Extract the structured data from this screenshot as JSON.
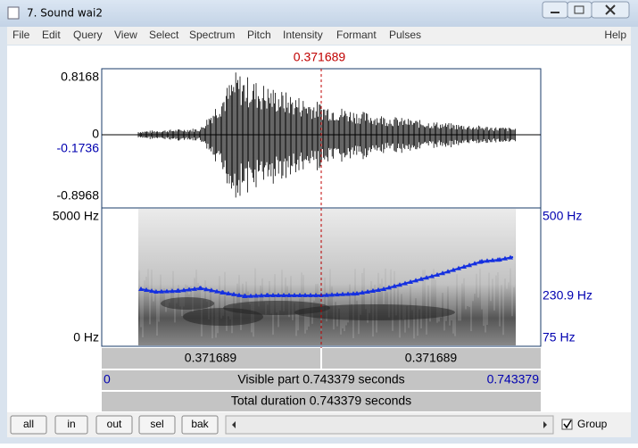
{
  "window": {
    "title": "7. Sound wai2"
  },
  "menu": {
    "items": [
      "File",
      "Edit",
      "Query",
      "View",
      "Select",
      "Spectrum",
      "Pitch",
      "Intensity",
      "Formant",
      "Pulses"
    ],
    "help": "Help"
  },
  "cursor_time": "0.371689",
  "waveform": {
    "max": "0.8168",
    "zero": "0",
    "cursor_value": "-0.1736",
    "min": "-0.8968"
  },
  "spectrogram": {
    "fmax": "5000 Hz",
    "fmin": "0 Hz",
    "pitch_max": "500 Hz",
    "pitch_cursor": "230.9 Hz",
    "pitch_min": "75 Hz"
  },
  "selection_bar": {
    "left": "0.371689",
    "right": "0.371689"
  },
  "visible_bar": {
    "start": "0",
    "label": "Visible part 0.743379 seconds",
    "end": "0.743379"
  },
  "total_bar": {
    "label": "Total duration 0.743379 seconds"
  },
  "buttons": [
    "all",
    "in",
    "out",
    "sel",
    "bak"
  ],
  "group": "Group"
}
